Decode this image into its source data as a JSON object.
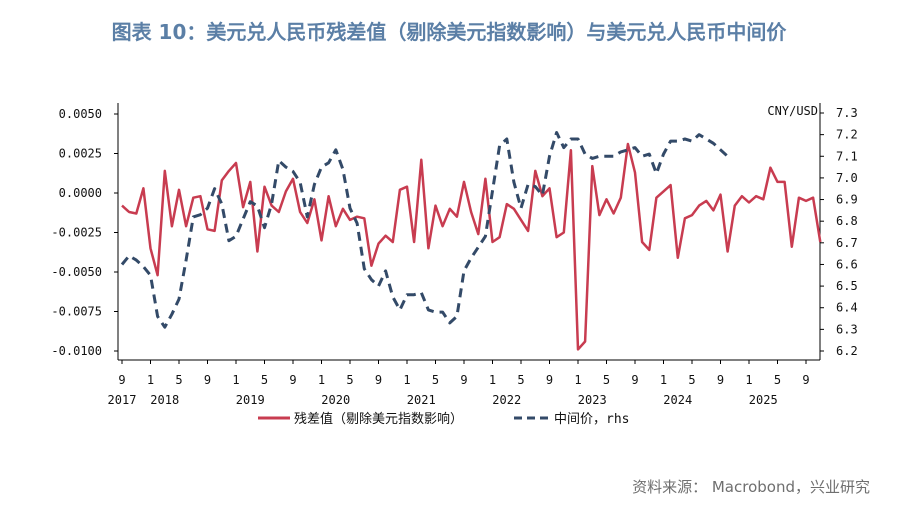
{
  "title": "图表 10：美元兑人民币残差值（剔除美元指数影响）与美元兑人民币中间价",
  "source": "资料来源：  Macrobond，兴业研究",
  "chart_data": {
    "type": "line",
    "right_axis_label": "CNY/USD",
    "left_ticks": [
      "0.0050",
      "0.0025",
      "0.0000",
      "-0.0025",
      "-0.0050",
      "-0.0075",
      "-0.0100"
    ],
    "right_ticks": [
      "7.3",
      "7.2",
      "7.1",
      "7.0",
      "6.9",
      "6.8",
      "6.7",
      "6.6",
      "6.5",
      "6.4",
      "6.3",
      "6.2"
    ],
    "ylim_left": [
      -0.0105,
      0.0055
    ],
    "ylim_right": [
      6.15,
      7.33
    ],
    "x_start": "2017-09",
    "x_end": "2025-09",
    "month_tick_labels": [
      "9",
      "1",
      "5",
      "9",
      "1",
      "5",
      "9",
      "1",
      "5",
      "9",
      "1",
      "5",
      "9",
      "1",
      "5",
      "9",
      "1",
      "5",
      "9",
      "1",
      "5",
      "9",
      "1",
      "5",
      "9"
    ],
    "year_labels": [
      "2017",
      "2018",
      "2019",
      "2020",
      "2021",
      "2022",
      "2023",
      "2024",
      "2025"
    ],
    "series": [
      {
        "name": "残差值（剔除美元指数影响）",
        "axis": "left",
        "color": "#c83c50",
        "style": "solid",
        "values": [
          -0.0008,
          -0.0012,
          -0.0013,
          0.0003,
          -0.0035,
          -0.0052,
          0.0014,
          -0.0021,
          0.0002,
          -0.0021,
          -0.0003,
          -0.0002,
          -0.0023,
          -0.0024,
          0.0008,
          0.0014,
          0.0019,
          -0.0009,
          0.0007,
          -0.0037,
          0.0004,
          -0.0008,
          -0.0012,
          0.0001,
          0.0009,
          -0.0012,
          -0.0019,
          -0.0004,
          -0.003,
          -0.0002,
          -0.0021,
          -0.001,
          -0.0017,
          -0.0015,
          -0.0016,
          -0.0046,
          -0.0032,
          -0.0027,
          -0.0031,
          0.0002,
          0.0004,
          -0.0031,
          0.0021,
          -0.0035,
          -0.0008,
          -0.0021,
          -0.001,
          -0.0015,
          0.0007,
          -0.0012,
          -0.0026,
          0.0009,
          -0.0031,
          -0.0028,
          -0.0007,
          -0.001,
          -0.0017,
          -0.0024,
          0.0014,
          -0.0002,
          0.0003,
          -0.0028,
          -0.0025,
          0.0027,
          -0.0099,
          -0.0094,
          0.0017,
          -0.0014,
          -0.0004,
          -0.0013,
          -0.0003,
          0.0031,
          0.0013,
          -0.0031,
          -0.0036,
          -0.0003,
          0.0001,
          0.0005,
          -0.0041,
          -0.0016,
          -0.0014,
          -0.0008,
          -0.0005,
          -0.0011,
          -0.0001,
          -0.0037,
          -0.0008,
          -0.0002,
          -0.0006,
          -0.0002,
          -0.0004,
          0.0016,
          0.0007,
          0.0007,
          -0.0034,
          -0.0003,
          -0.0005,
          -0.0003,
          -0.0031
        ]
      },
      {
        "name": "中间价，rhs",
        "axis": "right",
        "color": "#334a68",
        "style": "dashed",
        "values": [
          6.6,
          6.64,
          6.62,
          6.59,
          6.55,
          6.36,
          6.31,
          6.37,
          6.44,
          6.62,
          6.82,
          6.83,
          6.86,
          6.95,
          6.88,
          6.71,
          6.73,
          6.81,
          6.89,
          6.87,
          6.77,
          6.88,
          7.08,
          7.05,
          7.03,
          6.98,
          6.82,
          6.97,
          7.05,
          7.07,
          7.13,
          7.04,
          6.86,
          6.79,
          6.58,
          6.53,
          6.5,
          6.57,
          6.45,
          6.39,
          6.46,
          6.46,
          6.47,
          6.39,
          6.38,
          6.38,
          6.33,
          6.36,
          6.57,
          6.63,
          6.68,
          6.73,
          6.94,
          7.15,
          7.18,
          6.98,
          6.86,
          6.97,
          6.96,
          6.92,
          7.1,
          7.21,
          7.14,
          7.18,
          7.18,
          7.11,
          7.09,
          7.1,
          7.1,
          7.1,
          7.12,
          7.13,
          7.14,
          7.1,
          7.11,
          7.02,
          7.11,
          7.17,
          7.17,
          7.18,
          7.17,
          7.2,
          7.18,
          7.16,
          7.13,
          7.1
        ]
      }
    ]
  }
}
